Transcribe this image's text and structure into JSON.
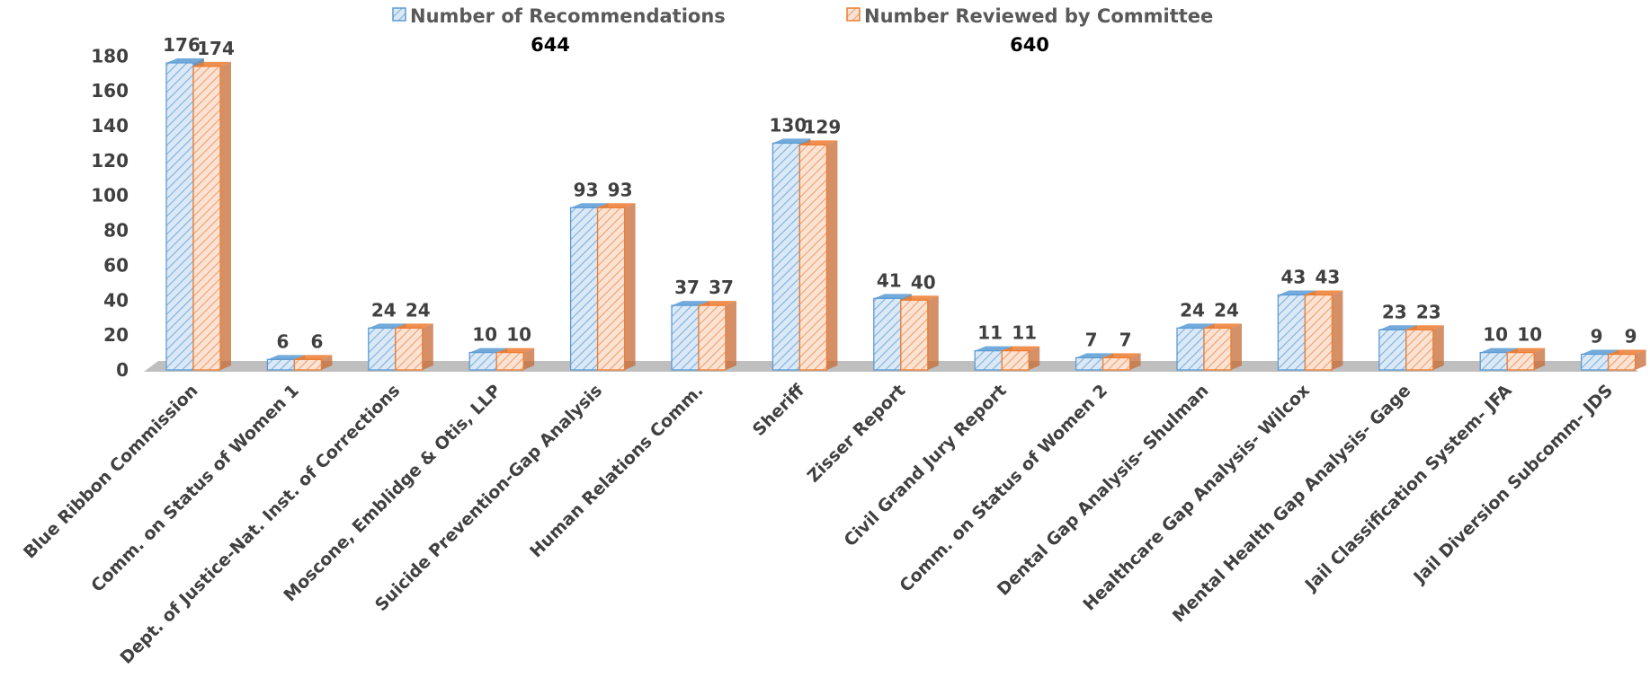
{
  "chart_data": {
    "type": "bar",
    "style": "3d-clustered-column",
    "categories": [
      "Blue Ribbon Commission",
      "Comm. on Status of Women 1",
      "Dept. of Justice-Nat. Inst. of Corrections",
      "Moscone, Emblidge & Otis, LLP",
      "Suicide Prevention-Gap Analysis",
      "Human Relations Comm.",
      "Sheriff",
      "Zisser Report",
      "Civil Grand Jury Report",
      "Comm. on Status of Women 2",
      "Dental Gap Analysis- Shulman",
      "Healthcare Gap Analysis- Wilcox",
      "Mental Health Gap Analysis- Gage",
      "Jail Classification System- JFA",
      "Jail Diversion Subcomm- JDS"
    ],
    "series": [
      {
        "name": "Number of Recommendations",
        "total": "644",
        "color": "#9dc3e6",
        "stroke": "#5b9bd5",
        "values": [
          176,
          6,
          24,
          10,
          93,
          37,
          130,
          41,
          11,
          7,
          24,
          43,
          23,
          10,
          9
        ]
      },
      {
        "name": "Number Reviewed by Committee",
        "total": "640",
        "color": "#f8cbad",
        "stroke": "#ed7d31",
        "values": [
          174,
          6,
          24,
          10,
          93,
          37,
          129,
          40,
          11,
          7,
          24,
          43,
          23,
          10,
          9
        ]
      }
    ],
    "yticks": [
      "0",
      "20",
      "40",
      "60",
      "80",
      "100",
      "120",
      "140",
      "160",
      "180"
    ],
    "ylim": [
      0,
      180
    ],
    "legend_position": "top",
    "floor_color": "#bfbfbf",
    "side_colors": [
      "#4a6f94",
      "#c76b36"
    ]
  }
}
